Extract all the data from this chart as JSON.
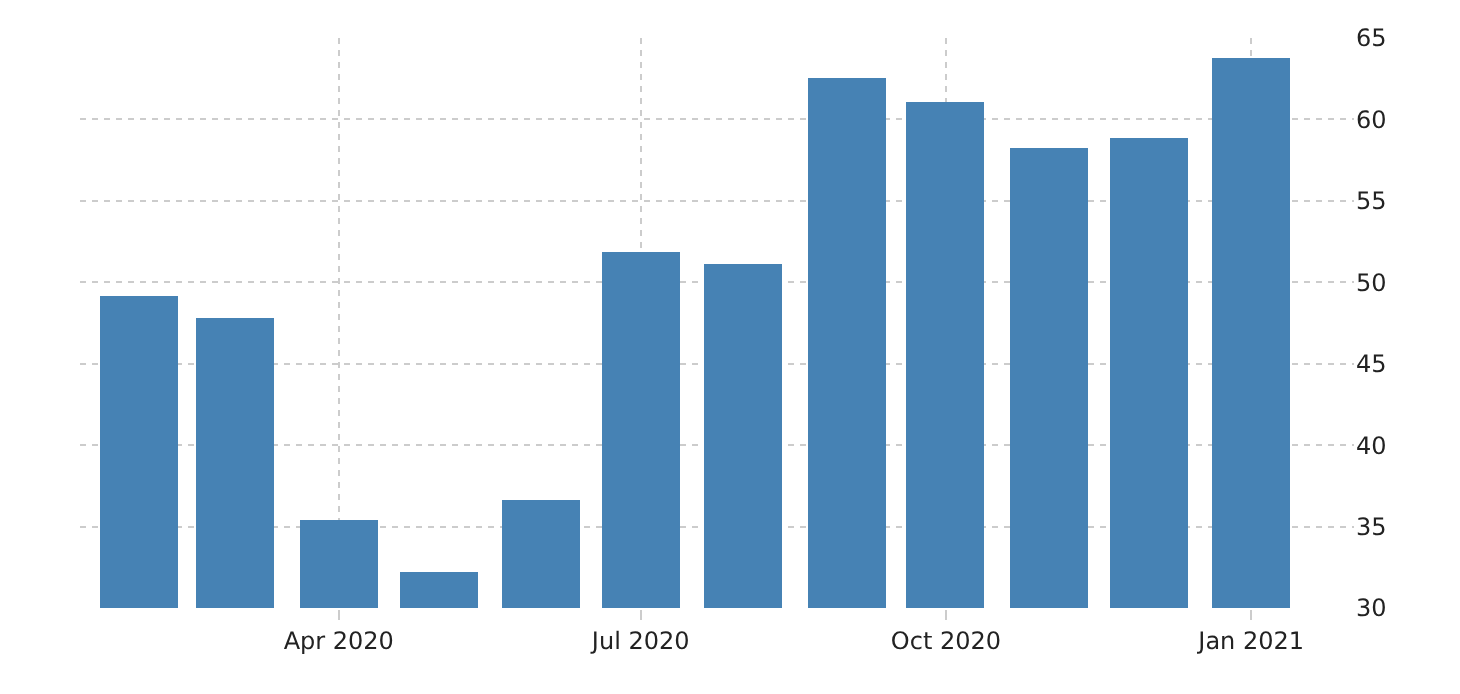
{
  "chart_data": {
    "type": "bar",
    "x": [
      "2020-02",
      "2020-03",
      "2020-04",
      "2020-05",
      "2020-06",
      "2020-07",
      "2020-08",
      "2020-09",
      "2020-10",
      "2020-11",
      "2020-12",
      "2021-01"
    ],
    "values": [
      49.1,
      47.8,
      35.4,
      32.2,
      36.6,
      51.9,
      51.1,
      62.5,
      61.1,
      58.3,
      58.8,
      63.8
    ],
    "color": "#4682b4",
    "xlim": [
      "2020-01-14",
      "2021-02-01"
    ],
    "xticks": [
      {
        "value": "2020-04",
        "label": "Apr 2020"
      },
      {
        "value": "2020-07",
        "label": "Jul 2020"
      },
      {
        "value": "2020-10",
        "label": "Oct 2020"
      },
      {
        "value": "2021-01",
        "label": "Jan 2021"
      }
    ],
    "ylim": [
      30,
      65
    ],
    "yticks": [
      30,
      35,
      40,
      45,
      50,
      55,
      60,
      65
    ],
    "grid": true
  }
}
